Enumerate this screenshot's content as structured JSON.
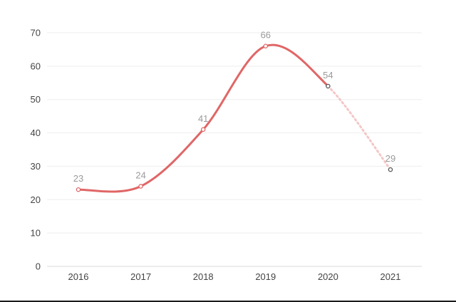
{
  "chart_data": {
    "type": "line",
    "categories": [
      "2016",
      "2017",
      "2018",
      "2019",
      "2020",
      "2021"
    ],
    "values": [
      23,
      24,
      41,
      66,
      54,
      29
    ],
    "projected_from_index": 4,
    "ylim": [
      0,
      70
    ],
    "yticks": [
      "0",
      "10",
      "20",
      "30",
      "40",
      "50",
      "60",
      "70"
    ],
    "data_labels": [
      "23",
      "24",
      "41",
      "66",
      "54",
      "29"
    ],
    "grid": true,
    "colors": {
      "line": "#e06666",
      "projected_line": "#f4c7c7",
      "projected_marker": "#555555",
      "grid": "#eeeeee",
      "axis": "#d9d9d9"
    }
  }
}
